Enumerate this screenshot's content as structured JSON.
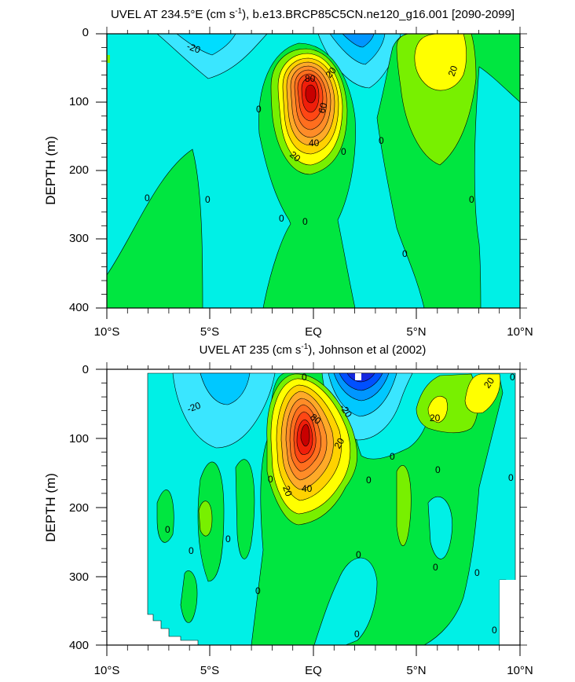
{
  "colors": {
    "cyan_bg": "#00ffe6",
    "cyan": "#00f0f0",
    "light_blue": "#3ae6ff",
    "sky": "#00c8ff",
    "blue": "#0096ff",
    "deep_blue": "#0050ff",
    "navy": "#1428e0",
    "green": "#00e640",
    "lime": "#78f000",
    "yellow": "#ffff00",
    "gold": "#ffd200",
    "orange1": "#ffaa28",
    "orange2": "#ff8c28",
    "orange3": "#ff6e1e",
    "red1": "#ff4614",
    "red2": "#f01e0a",
    "dark_red": "#c80000"
  },
  "chart_data": [
    {
      "type": "contour",
      "title": "UVEL AT 234.5°E (cm s⁻¹), b.e13.BRCP85C5CN.ne120_g16.001 [2090-2099]",
      "title_parts": {
        "a": "UVEL AT 234.5°E (cm s",
        "sup": "-1",
        "b": "), b.e13.BRCP85C5CN.ne120_g16.001 [2090-2099]"
      },
      "xlabel": "",
      "ylabel": "DEPTH (m)",
      "x_ticks": [
        "10°S",
        "5°S",
        "EQ",
        "5°N",
        "10°N"
      ],
      "y_ticks": [
        "0",
        "100",
        "200",
        "300",
        "400"
      ],
      "xlim": [
        -10,
        10
      ],
      "ylim": [
        400,
        0
      ],
      "contour_interval": 10,
      "contour_labels": [
        "-20",
        "80",
        "20",
        "60",
        "40",
        "20",
        "20",
        "0",
        "0",
        "0",
        "0",
        "0",
        "0",
        "0",
        "0",
        "0"
      ],
      "max_value": 90,
      "min_value": -30
    },
    {
      "type": "contour",
      "title": "UVEL AT 235 (cm s⁻¹), Johnson et al (2002)",
      "title_parts": {
        "a": "UVEL AT 235 (cm s",
        "sup": "-1",
        "b": "), Johnson et al (2002)"
      },
      "xlabel": "",
      "ylabel": "DEPTH (m)",
      "x_ticks": [
        "10°S",
        "5°S",
        "EQ",
        "5°N",
        "10°N"
      ],
      "y_ticks": [
        "0",
        "100",
        "200",
        "300",
        "400"
      ],
      "xlim": [
        -10,
        10
      ],
      "ylim": [
        400,
        0
      ],
      "contour_interval": 10,
      "contour_labels": [
        "-20",
        "0",
        "80",
        "-20",
        "20",
        "20",
        "40",
        "20",
        "0",
        "0",
        "0",
        "0",
        "0",
        "0",
        "0",
        "0",
        "0",
        "0",
        "0",
        "0",
        "0",
        "0",
        "20",
        "0"
      ],
      "max_value": 100,
      "min_value": -60
    }
  ]
}
